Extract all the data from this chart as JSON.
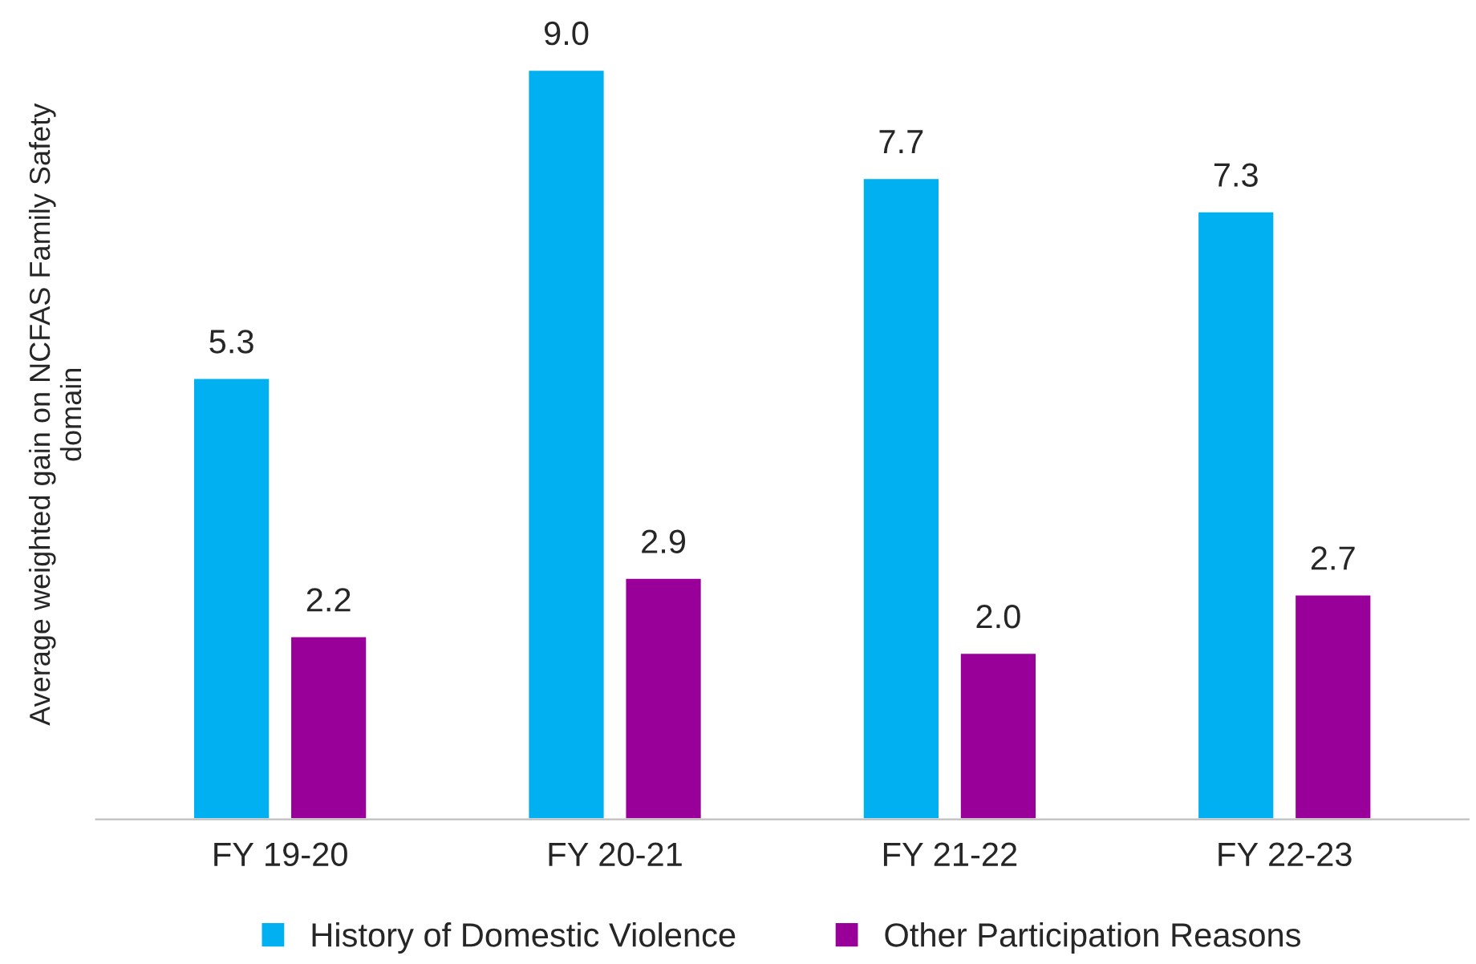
{
  "chart_data": {
    "type": "bar",
    "ylabel": "Average weighted gain on NCFAS Family Safety\ndomain",
    "categories": [
      "FY 19-20",
      "FY 20-21",
      "FY 21-22",
      "FY 22-23"
    ],
    "series": [
      {
        "name": "History of Domestic Violence",
        "color": "#00b0f0",
        "values": [
          5.3,
          9.0,
          7.7,
          7.3
        ],
        "value_labels": [
          "5.3",
          "9.0",
          "7.7",
          "7.3"
        ]
      },
      {
        "name": "Other Participation Reasons",
        "color": "#990099",
        "values": [
          2.2,
          2.9,
          2.0,
          2.7
        ],
        "value_labels": [
          "2.2",
          "2.9",
          "2.0",
          "2.7"
        ]
      }
    ],
    "legend": "bottom",
    "grid": false,
    "tick_labels": "x"
  }
}
